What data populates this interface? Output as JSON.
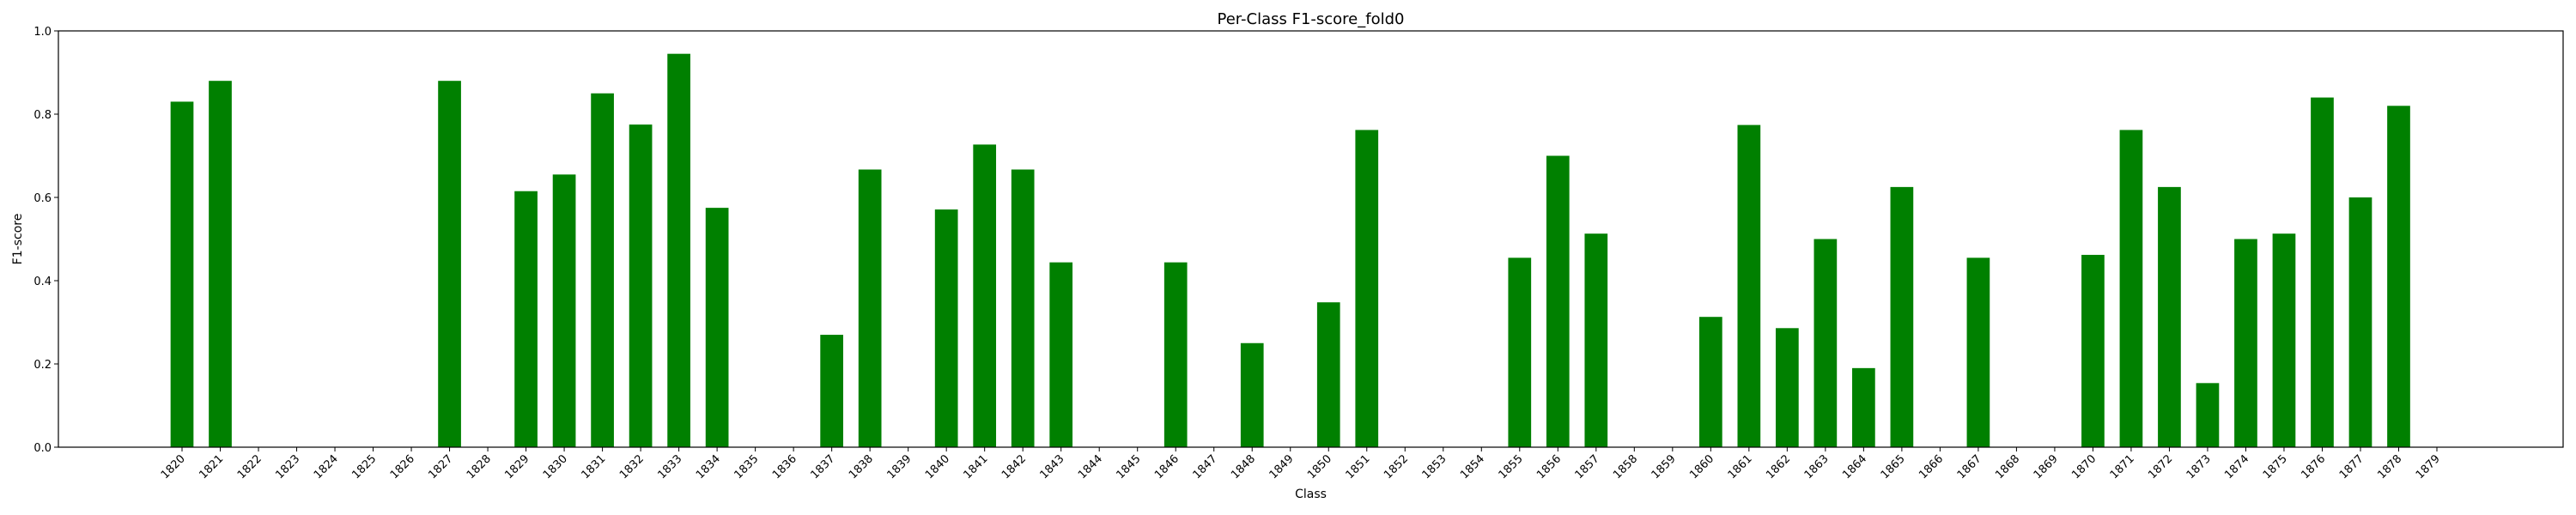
{
  "chart_data": {
    "type": "bar",
    "title": "Per-Class F1-score_fold0",
    "xlabel": "Class",
    "ylabel": "F1-score",
    "ylim": [
      0,
      1
    ],
    "yticks": [
      "0.0",
      "0.2",
      "0.4",
      "0.6",
      "0.8",
      "1.0"
    ],
    "grid": false,
    "bar_color": "#008000",
    "categories": [
      "1820",
      "1821",
      "1822",
      "1823",
      "1824",
      "1825",
      "1826",
      "1827",
      "1828",
      "1829",
      "1830",
      "1831",
      "1832",
      "1833",
      "1834",
      "1835",
      "1836",
      "1837",
      "1838",
      "1839",
      "1840",
      "1841",
      "1842",
      "1843",
      "1844",
      "1845",
      "1846",
      "1847",
      "1848",
      "1849",
      "1850",
      "1851",
      "1852",
      "1853",
      "1854",
      "1855",
      "1856",
      "1857",
      "1858",
      "1859",
      "1860",
      "1861",
      "1862",
      "1863",
      "1864",
      "1865",
      "1866",
      "1867",
      "1868",
      "1869",
      "1870",
      "1871",
      "1872",
      "1873",
      "1874",
      "1875",
      "1876",
      "1877",
      "1878",
      "1879"
    ],
    "values": [
      0.83,
      0.88,
      0,
      0,
      0,
      0,
      0,
      0.88,
      0,
      0.615,
      0.655,
      0.85,
      0.775,
      0.945,
      0.575,
      0,
      0,
      0.27,
      0.667,
      0,
      0.571,
      0.727,
      0.667,
      0.444,
      0,
      0,
      0.444,
      0,
      0.25,
      0,
      0.348,
      0.762,
      0,
      0,
      0,
      0.455,
      0.7,
      0.513,
      0,
      0,
      0.313,
      0.774,
      0.286,
      0.5,
      0.19,
      0.625,
      0,
      0.455,
      0,
      0,
      0.462,
      0.762,
      0.625,
      0.154,
      0.5,
      0.513,
      0.84,
      0.6,
      0.82,
      0
    ]
  }
}
